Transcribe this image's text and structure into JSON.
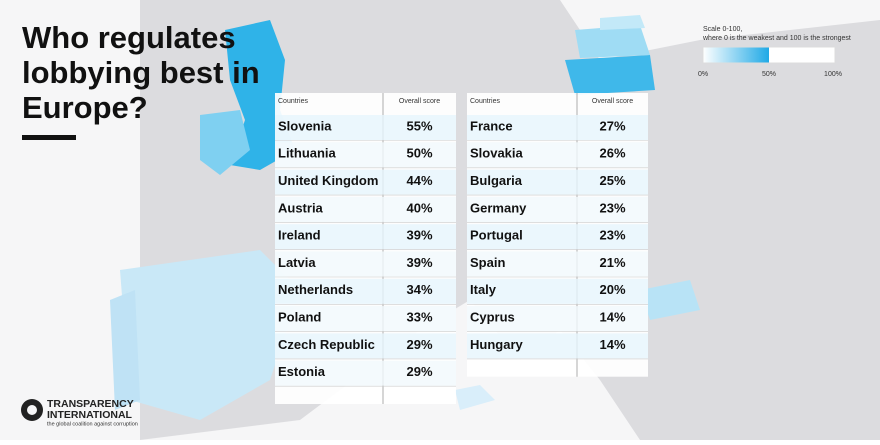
{
  "header": {
    "title": [
      "Who regulates",
      "lobbying best in",
      "Europe?"
    ]
  },
  "legend": {
    "text": [
      "Scale 0-100,",
      "where 0 is the weakest and 100 is the strongest"
    ],
    "labels": [
      "0%",
      "50%",
      "100%"
    ]
  },
  "tables": [
    {
      "headers": [
        "Countries",
        "Overall score"
      ],
      "rows": [
        [
          "Slovenia",
          "55%"
        ],
        [
          "Lithuania",
          "50%"
        ],
        [
          "United Kingdom",
          "44%"
        ],
        [
          "Austria",
          "40%"
        ],
        [
          "Ireland",
          "39%"
        ],
        [
          "Latvia",
          "39%"
        ],
        [
          "Netherlands",
          "34%"
        ],
        [
          "Poland",
          "33%"
        ],
        [
          "Czech Republic",
          "29%"
        ],
        [
          "Estonia",
          "29%"
        ]
      ]
    },
    {
      "headers": [
        "Countries",
        "Overall score"
      ],
      "rows": [
        [
          "France",
          "27%"
        ],
        [
          "Slovakia",
          "26%"
        ],
        [
          "Bulgaria",
          "25%"
        ],
        [
          "Germany",
          "23%"
        ],
        [
          "Portugal",
          "23%"
        ],
        [
          "Spain",
          "21%"
        ],
        [
          "Italy",
          "20%"
        ],
        [
          "Cyprus",
          "14%"
        ],
        [
          "Hungary",
          "14%"
        ]
      ]
    }
  ],
  "logo": {
    "name": [
      "TRANSPARENCY",
      "INTERNATIONAL"
    ],
    "tagline": "the global coalition against corruption"
  }
}
